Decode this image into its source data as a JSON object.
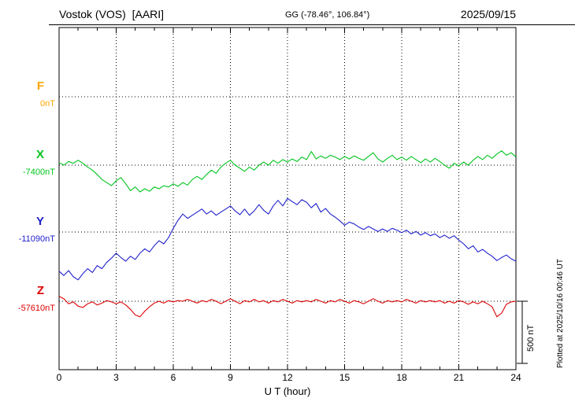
{
  "header": {
    "station": "Vostok (VOS)  [AARI]",
    "coords": "GG (-78.46°, 106.84°)",
    "date": "2025/09/15"
  },
  "axis": {
    "xlabel": "U T (hour)",
    "ticks": [
      0,
      3,
      6,
      9,
      12,
      15,
      18,
      21,
      24
    ]
  },
  "scale_bar": {
    "label": "500 nT",
    "nT": 500
  },
  "footer_note": "Plotted at 2025/10/16 00:46 UT",
  "chart_data": {
    "type": "line",
    "title": "Vostok (VOS) [AARI] magnetogram 2025/09/15",
    "xlabel": "U T (hour)",
    "x_range": [
      0,
      24
    ],
    "x_step_hours": 0.25,
    "scale_bar_nT": 500,
    "grid": "dotted baselines and 3-hour verticals",
    "series": [
      {
        "name": "F",
        "label": "F",
        "baseline_label": "0nT",
        "base": 0,
        "color": "#FFA500",
        "values": []
      },
      {
        "name": "X",
        "label": "X",
        "baseline_label": "-7400nT",
        "base": -7400,
        "color": "#00C41E",
        "values": [
          -7380,
          -7400,
          -7370,
          -7385,
          -7360,
          -7385,
          -7415,
          -7440,
          -7475,
          -7515,
          -7540,
          -7565,
          -7525,
          -7500,
          -7550,
          -7605,
          -7575,
          -7615,
          -7590,
          -7610,
          -7575,
          -7590,
          -7565,
          -7575,
          -7550,
          -7570,
          -7540,
          -7560,
          -7515,
          -7490,
          -7515,
          -7475,
          -7440,
          -7465,
          -7415,
          -7385,
          -7360,
          -7400,
          -7425,
          -7450,
          -7415,
          -7440,
          -7400,
          -7375,
          -7400,
          -7360,
          -7385,
          -7355,
          -7375,
          -7350,
          -7370,
          -7335,
          -7355,
          -7290,
          -7350,
          -7325,
          -7345,
          -7320,
          -7335,
          -7355,
          -7330,
          -7350,
          -7325,
          -7345,
          -7360,
          -7330,
          -7300,
          -7350,
          -7375,
          -7345,
          -7320,
          -7355,
          -7335,
          -7360,
          -7330,
          -7355,
          -7380,
          -7350,
          -7375,
          -7345,
          -7370,
          -7400,
          -7425,
          -7385,
          -7405,
          -7375,
          -7400,
          -7360,
          -7330,
          -7355,
          -7320,
          -7345,
          -7310,
          -7285,
          -7320,
          -7300,
          -7335
        ]
      },
      {
        "name": "Y",
        "label": "Y",
        "baseline_label": "-11090nT",
        "base": -11090,
        "color": "#2020CC",
        "values": [
          -11405,
          -11440,
          -11400,
          -11450,
          -11475,
          -11425,
          -11385,
          -11415,
          -11360,
          -11385,
          -11335,
          -11300,
          -11260,
          -11295,
          -11325,
          -11285,
          -11310,
          -11260,
          -11225,
          -11250,
          -11200,
          -11160,
          -11185,
          -11135,
          -11060,
          -10995,
          -10945,
          -10980,
          -10955,
          -10930,
          -10905,
          -10945,
          -10920,
          -10955,
          -10930,
          -10905,
          -10880,
          -10920,
          -10950,
          -10905,
          -10955,
          -10920,
          -10870,
          -10915,
          -10945,
          -10880,
          -10835,
          -10880,
          -10820,
          -10845,
          -10870,
          -10830,
          -10850,
          -10895,
          -10860,
          -10930,
          -10900,
          -10945,
          -10970,
          -11000,
          -11035,
          -11010,
          -11025,
          -11050,
          -11070,
          -11045,
          -11065,
          -11085,
          -11065,
          -11085,
          -11060,
          -11075,
          -11095,
          -11075,
          -11105,
          -11085,
          -11115,
          -11095,
          -11120,
          -11105,
          -11135,
          -11115,
          -11140,
          -11120,
          -11155,
          -11185,
          -11225,
          -11200,
          -11250,
          -11230,
          -11260,
          -11285,
          -11320,
          -11295,
          -11275,
          -11305,
          -11325
        ]
      },
      {
        "name": "Z",
        "label": "Z",
        "baseline_label": "-57610nT",
        "base": -57610,
        "color": "#DD0000",
        "values": [
          -57570,
          -57590,
          -57630,
          -57615,
          -57650,
          -57660,
          -57630,
          -57615,
          -57640,
          -57625,
          -57605,
          -57615,
          -57630,
          -57615,
          -57640,
          -57675,
          -57720,
          -57735,
          -57690,
          -57655,
          -57625,
          -57610,
          -57625,
          -57605,
          -57615,
          -57605,
          -57610,
          -57595,
          -57610,
          -57625,
          -57605,
          -57615,
          -57595,
          -57610,
          -57630,
          -57610,
          -57590,
          -57610,
          -57630,
          -57605,
          -57615,
          -57595,
          -57615,
          -57605,
          -57625,
          -57605,
          -57615,
          -57595,
          -57610,
          -57625,
          -57605,
          -57615,
          -57605,
          -57615,
          -57595,
          -57610,
          -57625,
          -57605,
          -57615,
          -57595,
          -57610,
          -57625,
          -57605,
          -57615,
          -57630,
          -57610,
          -57590,
          -57610,
          -57625,
          -57605,
          -57615,
          -57605,
          -57615,
          -57595,
          -57610,
          -57625,
          -57605,
          -57615,
          -57605,
          -57615,
          -57605,
          -57625,
          -57610,
          -57625,
          -57605,
          -57615,
          -57635,
          -57615,
          -57630,
          -57610,
          -57630,
          -57655,
          -57735,
          -57705,
          -57635,
          -57615,
          -57610
        ]
      }
    ]
  }
}
